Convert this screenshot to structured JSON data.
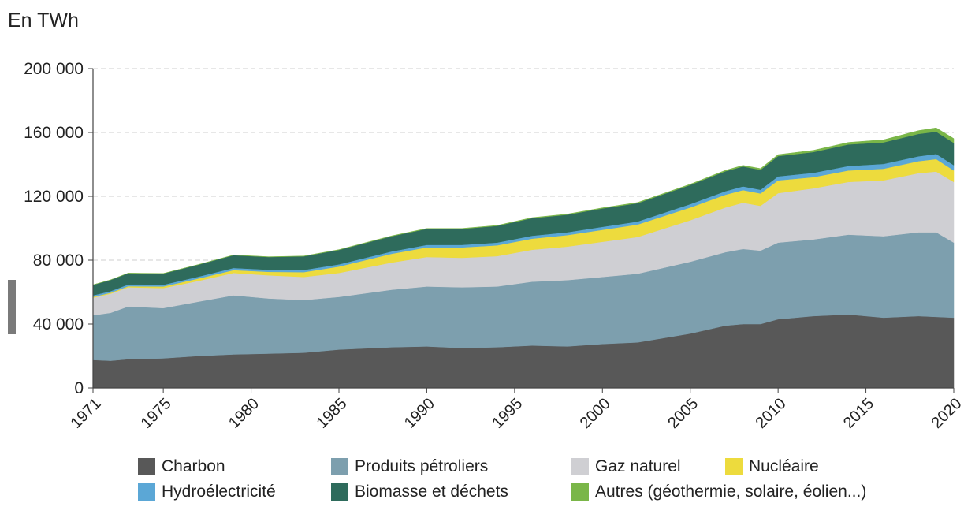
{
  "chart_data": {
    "type": "area",
    "stacked": true,
    "ylabel": "En TWh",
    "ylim": [
      0,
      200000
    ],
    "yticks": [
      0,
      40000,
      80000,
      120000,
      160000,
      200000
    ],
    "ytick_labels": [
      "0",
      "40 000",
      "80 000",
      "120 000",
      "160 000",
      "200 000"
    ],
    "xlim": [
      1971,
      2020
    ],
    "xticks": [
      1971,
      1975,
      1980,
      1985,
      1990,
      1995,
      2000,
      2005,
      2010,
      2015,
      2020
    ],
    "xtick_labels": [
      "1971",
      "1975",
      "1980",
      "1985",
      "1990",
      "1995",
      "2000",
      "2005",
      "2010",
      "2015",
      "2020"
    ],
    "grid": "horizontal dashed",
    "legend_position": "bottom",
    "x": [
      1971,
      1972,
      1973,
      1975,
      1977,
      1979,
      1981,
      1983,
      1985,
      1988,
      1990,
      1992,
      1994,
      1996,
      1998,
      2000,
      2002,
      2005,
      2007,
      2008,
      2009,
      2010,
      2012,
      2014,
      2016,
      2018,
      2019,
      2020
    ],
    "series": [
      {
        "name": "Charbon",
        "color": "#585858",
        "values": [
          17500,
          17000,
          18000,
          18500,
          20000,
          21000,
          21500,
          22000,
          24000,
          25500,
          26000,
          25000,
          25500,
          26500,
          26000,
          27500,
          28500,
          34000,
          39000,
          40000,
          40000,
          43000,
          45000,
          46000,
          44000,
          45000,
          44500,
          44000
        ]
      },
      {
        "name": "Produits pétroliers",
        "color": "#7d9fae",
        "values": [
          28000,
          30000,
          33000,
          31500,
          34000,
          37000,
          34500,
          33000,
          33000,
          36000,
          37500,
          38000,
          38000,
          40000,
          41500,
          42000,
          43000,
          45000,
          46000,
          47000,
          46000,
          48000,
          48000,
          50000,
          51000,
          52500,
          53000,
          47000
        ]
      },
      {
        "name": "Gaz naturel",
        "color": "#cfcfd3",
        "values": [
          11000,
          12000,
          12000,
          12500,
          13000,
          14000,
          14500,
          14500,
          15000,
          17000,
          18500,
          18500,
          19000,
          20000,
          21000,
          22000,
          23000,
          26000,
          28000,
          29000,
          28000,
          31000,
          32000,
          33000,
          35000,
          37000,
          38000,
          38000
        ]
      },
      {
        "name": "Nucléaire",
        "color": "#eddb3d",
        "values": [
          500,
          600,
          700,
          1000,
          1500,
          1800,
          2200,
          3000,
          4000,
          5500,
          6000,
          6500,
          6800,
          7000,
          7200,
          7500,
          7800,
          8000,
          8000,
          7900,
          7800,
          8000,
          7000,
          7200,
          7300,
          7500,
          7800,
          7200
        ]
      },
      {
        "name": "Hydroélectricité",
        "color": "#5ba7d6",
        "values": [
          1000,
          1000,
          1100,
          1100,
          1200,
          1300,
          1300,
          1400,
          1400,
          1500,
          1600,
          1600,
          1700,
          1800,
          1800,
          1900,
          1900,
          2100,
          2200,
          2300,
          2300,
          2500,
          2700,
          2800,
          3000,
          3100,
          3200,
          3300
        ]
      },
      {
        "name": "Biomasse et déchets",
        "color": "#2e6b5c",
        "values": [
          6500,
          7000,
          7000,
          7000,
          7500,
          8000,
          8000,
          8500,
          9000,
          9500,
          10000,
          10000,
          10500,
          11000,
          11000,
          11500,
          11500,
          12000,
          12500,
          12500,
          12500,
          12700,
          13000,
          13500,
          13500,
          14000,
          14000,
          14000
        ]
      },
      {
        "name": "Autres (géothermie, solaire, éolien...)",
        "color": "#7ab648",
        "values": [
          100,
          100,
          100,
          100,
          100,
          150,
          150,
          200,
          200,
          250,
          300,
          300,
          300,
          350,
          400,
          400,
          450,
          500,
          600,
          700,
          800,
          900,
          1100,
          1300,
          1600,
          2100,
          2400,
          2700
        ]
      }
    ]
  }
}
